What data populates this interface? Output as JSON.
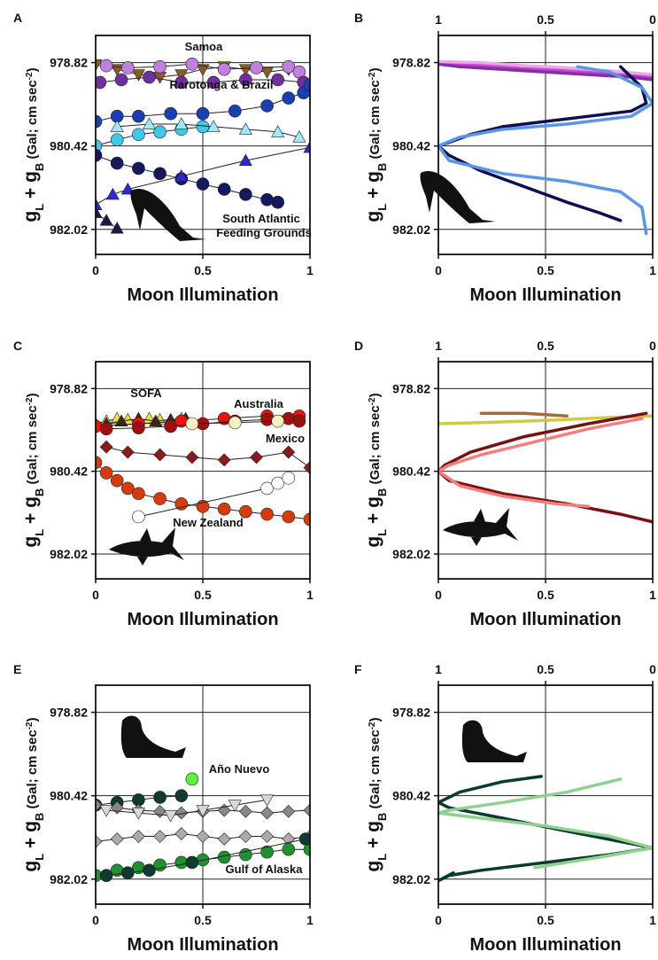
{
  "figure": {
    "xlabel": "Moon Illumination",
    "ylabel_main": "g",
    "ylabel_sub_L": "L",
    "ylabel_plus": " + g",
    "ylabel_sub_B": "B",
    "ylabel_units": " (Gal; cm sec",
    "ylabel_exp": "-2",
    "ylabel_close": ")",
    "y_ticks": [
      "978.82",
      "980.42",
      "982.02"
    ],
    "x_ticks_left": [
      "0",
      "0.5",
      "1"
    ],
    "x_ticks_right_top": [
      "1",
      "0.5",
      "0"
    ],
    "x_ticks_right_bottom": [
      "0",
      "0.5",
      "1"
    ]
  },
  "panels": [
    {
      "letter": "A",
      "silhouette": "whale",
      "labels": [
        "Samoa",
        "Rarotonga & Brazil",
        "South Atlantic",
        "Feeding Grounds"
      ]
    },
    {
      "letter": "B",
      "silhouette": "whale",
      "labels": []
    },
    {
      "letter": "C",
      "silhouette": "shark",
      "labels": [
        "SOFA",
        "Australia",
        "Mexico",
        "New Zealand"
      ]
    },
    {
      "letter": "D",
      "silhouette": "shark",
      "labels": []
    },
    {
      "letter": "E",
      "silhouette": "seal",
      "labels": [
        "Año Nuevo",
        "Gulf of Alaska"
      ]
    },
    {
      "letter": "F",
      "silhouette": "seal",
      "labels": []
    }
  ],
  "chart_data": [
    {
      "panel": "A",
      "type": "scatter",
      "xlabel": "Moon Illumination",
      "ylabel": "gL + gB (Gal; cm sec-2)",
      "xlim": [
        0,
        1
      ],
      "ylim": [
        978.3,
        982.5
      ],
      "series": [
        {
          "name": "Samoa",
          "color": "#8b5a2b",
          "marker": "triangle-down",
          "x": [
            0.0,
            0.1,
            0.2,
            0.3,
            0.4,
            0.5,
            0.6,
            0.7,
            0.8,
            0.9
          ],
          "y": [
            978.86,
            978.95,
            979.05,
            979.1,
            979.05,
            978.95,
            978.9,
            978.95,
            979.0,
            978.95
          ]
        },
        {
          "name": "Samoa (2)",
          "color": "#c080e0",
          "marker": "circle",
          "x": [
            0.05,
            0.15,
            0.3,
            0.45,
            0.6,
            0.75,
            0.9,
            0.95
          ],
          "y": [
            978.88,
            978.92,
            978.9,
            978.85,
            978.95,
            978.92,
            978.9,
            979.0
          ]
        },
        {
          "name": "Rarotonga & Brazil",
          "color": "#7030a0",
          "marker": "circle",
          "x": [
            0.02,
            0.12,
            0.25,
            0.4,
            0.55,
            0.7,
            0.85,
            0.97
          ],
          "y": [
            979.2,
            979.15,
            979.1,
            979.2,
            979.2,
            979.15,
            979.15,
            979.2
          ]
        },
        {
          "name": "Brazil (blue)",
          "color": "#1a3fb0",
          "marker": "circle",
          "x": [
            0.0,
            0.1,
            0.2,
            0.35,
            0.5,
            0.65,
            0.8,
            0.9,
            0.97,
            1.0
          ],
          "y": [
            979.95,
            979.85,
            979.85,
            979.8,
            979.8,
            979.75,
            979.65,
            979.5,
            979.4,
            979.25
          ]
        },
        {
          "name": "Brazil (cyan)",
          "color": "#40c8e8",
          "marker": "circle",
          "x": [
            0.0,
            0.1,
            0.2,
            0.3,
            0.4,
            0.5
          ],
          "y": [
            980.42,
            980.3,
            980.2,
            980.15,
            980.1,
            980.05
          ]
        },
        {
          "name": "Brazil (light-cyan)",
          "color": "#a0e8f8",
          "marker": "triangle-up",
          "x": [
            0.1,
            0.25,
            0.4,
            0.55,
            0.7,
            0.85,
            0.95
          ],
          "y": [
            980.05,
            980.0,
            980.0,
            980.05,
            980.1,
            980.15,
            980.25
          ]
        },
        {
          "name": "South Atlantic Feeding Grounds",
          "color": "#15195e",
          "marker": "circle",
          "x": [
            0.0,
            0.1,
            0.2,
            0.3,
            0.4,
            0.5,
            0.6,
            0.7,
            0.8,
            0.85
          ],
          "y": [
            980.6,
            980.75,
            980.85,
            980.95,
            981.05,
            981.15,
            981.25,
            981.35,
            981.45,
            981.5
          ]
        },
        {
          "name": "South Atlantic (blue)",
          "color": "#2a2ad0",
          "marker": "triangle-up",
          "x": [
            0.0,
            0.08,
            0.15,
            0.4,
            0.7,
            1.0
          ],
          "y": [
            981.55,
            981.35,
            981.25,
            981.0,
            980.7,
            980.45
          ]
        },
        {
          "name": "South Atlantic (dark)",
          "color": "#1a1a4a",
          "marker": "triangle-up",
          "x": [
            0.0,
            0.05,
            0.1
          ],
          "y": [
            981.7,
            981.85,
            982.0
          ]
        }
      ]
    },
    {
      "panel": "B",
      "type": "line",
      "xlabel": "Moon Illumination",
      "ylabel": "gL + gB (Gal; cm sec-2)",
      "xlim": [
        0,
        1
      ],
      "x_top_ticks": [
        "1",
        "0.5",
        "0"
      ],
      "ylim": [
        978.3,
        982.5
      ],
      "series": [
        {
          "name": "Samoa (magenta)",
          "color": "#cc44cc",
          "x": [
            0.0,
            0.1,
            0.3,
            0.5,
            0.7,
            0.9,
            1.0
          ],
          "y": [
            978.82,
            978.85,
            978.9,
            978.95,
            979.0,
            979.05,
            979.1
          ]
        },
        {
          "name": "Samoa (purple)",
          "color": "#8030a8",
          "x": [
            0.0,
            0.1,
            0.3,
            0.5,
            0.7,
            0.9,
            1.0
          ],
          "y": [
            978.85,
            978.9,
            978.95,
            979.0,
            979.05,
            979.1,
            979.15
          ]
        },
        {
          "name": "Samoa (pink)",
          "color": "#e9a8e9",
          "x": [
            0.0,
            0.2,
            0.4,
            0.6,
            0.8,
            1.0
          ],
          "y": [
            978.8,
            978.82,
            978.88,
            978.92,
            978.98,
            979.05
          ]
        },
        {
          "name": "Feeding (navy)",
          "color": "#0e0e52",
          "x": [
            0.85,
            0.9,
            0.95,
            0.97,
            0.9,
            0.7,
            0.5,
            0.3,
            0.15,
            0.05,
            0.0,
            0.05,
            0.2,
            0.4,
            0.6,
            0.75,
            0.85
          ],
          "y": [
            978.9,
            979.1,
            979.3,
            979.6,
            979.75,
            979.85,
            979.95,
            980.05,
            980.2,
            980.35,
            980.42,
            980.6,
            980.9,
            981.2,
            981.5,
            981.7,
            981.85
          ]
        },
        {
          "name": "Feeding (blue)",
          "color": "#5b95e8",
          "x": [
            0.65,
            0.8,
            0.95,
            1.0,
            0.9,
            0.6,
            0.3,
            0.1,
            0.0,
            0.05,
            0.3,
            0.6,
            0.85,
            0.95,
            0.97
          ],
          "y": [
            978.9,
            979.0,
            979.3,
            979.6,
            979.85,
            980.0,
            980.1,
            980.25,
            980.42,
            980.7,
            980.95,
            981.1,
            981.3,
            981.6,
            982.1
          ]
        }
      ]
    },
    {
      "panel": "C",
      "type": "scatter",
      "xlabel": "Moon Illumination",
      "ylabel": "gL + gB (Gal; cm sec-2)",
      "xlim": [
        0,
        1
      ],
      "ylim": [
        978.3,
        982.5
      ],
      "series": [
        {
          "name": "SOFA",
          "color": "#e8e050",
          "marker": "triangle-up",
          "x": [
            0.0,
            0.05,
            0.1,
            0.15,
            0.2,
            0.25,
            0.3,
            0.35,
            0.4
          ],
          "y": [
            979.5,
            979.45,
            979.4,
            979.42,
            979.45,
            979.4,
            979.42,
            979.45,
            979.4
          ]
        },
        {
          "name": "SOFA (dark)",
          "color": "#3a2a10",
          "marker": "triangle-up",
          "x": [
            0.05,
            0.12,
            0.2,
            0.28,
            0.35,
            0.42
          ],
          "y": [
            979.5,
            979.45,
            979.4,
            979.45,
            979.42,
            979.4
          ]
        },
        {
          "name": "Australia",
          "color": "#ee1111",
          "marker": "circle",
          "x": [
            0.0,
            0.2,
            0.4,
            0.6,
            0.8,
            0.95
          ],
          "y": [
            979.55,
            979.5,
            979.45,
            979.4,
            979.35,
            979.35
          ]
        },
        {
          "name": "Mexico",
          "color": "#a01010",
          "marker": "circle",
          "x": [
            0.05,
            0.2,
            0.35,
            0.5,
            0.65,
            0.8,
            0.9,
            0.95
          ],
          "y": [
            979.6,
            979.58,
            979.55,
            979.5,
            979.45,
            979.42,
            979.4,
            979.45
          ]
        },
        {
          "name": "Mexico (cream)",
          "color": "#f8f0c0",
          "marker": "circle",
          "x": [
            0.45,
            0.65,
            0.85
          ],
          "y": [
            979.5,
            979.48,
            979.45
          ]
        },
        {
          "name": "New Zealand",
          "color": "#d43c10",
          "marker": "circle",
          "x": [
            0.0,
            0.05,
            0.1,
            0.15,
            0.2,
            0.3,
            0.4,
            0.5,
            0.6,
            0.7,
            0.8,
            0.9,
            1.0
          ],
          "y": [
            980.25,
            980.45,
            980.6,
            980.75,
            980.85,
            980.95,
            981.05,
            981.1,
            981.15,
            981.2,
            981.25,
            981.3,
            981.35
          ]
        },
        {
          "name": "New Zealand (diamond)",
          "color": "#8b1a1a",
          "marker": "diamond",
          "x": [
            0.05,
            0.15,
            0.3,
            0.45,
            0.6,
            0.75,
            0.9,
            1.0
          ],
          "y": [
            979.95,
            980.05,
            980.1,
            980.15,
            980.2,
            980.15,
            980.05,
            980.35
          ]
        },
        {
          "name": "New Zealand (white)",
          "color": "#ffffff",
          "marker": "circle",
          "x": [
            0.2,
            0.8,
            0.85,
            0.9
          ],
          "y": [
            981.3,
            980.75,
            980.65,
            980.55
          ]
        }
      ]
    },
    {
      "panel": "D",
      "type": "line",
      "xlabel": "Moon Illumination",
      "ylabel": "gL + gB (Gal; cm sec-2)",
      "xlim": [
        0,
        1
      ],
      "x_top_ticks": [
        "1",
        "0.5",
        "0"
      ],
      "ylim": [
        978.3,
        982.5
      ],
      "series": [
        {
          "name": "SOFA (gold)",
          "color": "#cccc44",
          "x": [
            0.0,
            0.2,
            0.4,
            0.6,
            0.8,
            1.0
          ],
          "y": [
            979.5,
            979.48,
            979.45,
            979.42,
            979.38,
            979.35
          ]
        },
        {
          "name": "Australia (brown)",
          "color": "#a86a3a",
          "x": [
            0.2,
            0.4,
            0.6
          ],
          "y": [
            979.3,
            979.3,
            979.35
          ]
        },
        {
          "name": "Mexico (dark red)",
          "color": "#7a1010",
          "x": [
            0.97,
            0.7,
            0.4,
            0.15,
            0.03,
            0.0,
            0.05,
            0.3,
            0.6,
            0.85,
            1.0
          ],
          "y": [
            979.3,
            979.5,
            979.75,
            980.05,
            980.3,
            980.42,
            980.6,
            980.85,
            981.05,
            981.25,
            981.4
          ]
        },
        {
          "name": "New Zealand (salmon)",
          "color": "#f08080",
          "x": [
            0.95,
            0.7,
            0.45,
            0.2,
            0.05,
            0.0,
            0.1,
            0.3,
            0.55,
            0.7
          ],
          "y": [
            979.4,
            979.6,
            979.85,
            980.1,
            980.3,
            980.42,
            980.7,
            980.9,
            981.05,
            981.1
          ]
        }
      ]
    },
    {
      "panel": "E",
      "type": "scatter",
      "xlabel": "Moon Illumination",
      "ylabel": "gL + gB (Gal; cm sec-2)",
      "xlim": [
        0,
        1
      ],
      "ylim": [
        978.3,
        982.5
      ],
      "series": [
        {
          "name": "Año Nuevo (dark)",
          "color": "#103a30",
          "marker": "circle",
          "x": [
            0.0,
            0.1,
            0.2,
            0.3,
            0.4
          ],
          "y": [
            980.6,
            980.55,
            980.5,
            980.45,
            980.42
          ]
        },
        {
          "name": "Año Nuevo (bright green)",
          "color": "#60f040",
          "marker": "circle",
          "x": [
            0.45
          ],
          "y": [
            980.1
          ]
        },
        {
          "name": "Año Nuevo (grey)",
          "color": "#888888",
          "marker": "diamond",
          "x": [
            0.0,
            0.1,
            0.2,
            0.3,
            0.4,
            0.5,
            0.6,
            0.7,
            0.8,
            0.9,
            1.0
          ],
          "y": [
            980.6,
            980.65,
            980.7,
            980.72,
            980.75,
            980.72,
            980.7,
            980.72,
            980.75,
            980.72,
            980.7
          ]
        },
        {
          "name": "Año Nuevo (light)",
          "color": "#d8d8d8",
          "marker": "triangle-down",
          "x": [
            0.05,
            0.2,
            0.35,
            0.5,
            0.65,
            0.8
          ],
          "y": [
            980.7,
            980.75,
            980.8,
            980.7,
            980.6,
            980.5
          ]
        },
        {
          "name": "Gulf of Alaska (grey)",
          "color": "#aaaaaa",
          "marker": "diamond",
          "x": [
            0.0,
            0.1,
            0.2,
            0.3,
            0.4,
            0.5,
            0.6,
            0.7,
            0.8,
            0.9,
            1.0
          ],
          "y": [
            981.3,
            981.25,
            981.2,
            981.2,
            981.15,
            981.2,
            981.25,
            981.2,
            981.2,
            981.25,
            981.2
          ]
        },
        {
          "name": "Gulf of Alaska (green)",
          "color": "#209030",
          "marker": "circle",
          "x": [
            0.0,
            0.1,
            0.2,
            0.3,
            0.4,
            0.5,
            0.6,
            0.7,
            0.8,
            0.9,
            1.0
          ],
          "y": [
            981.95,
            981.85,
            981.8,
            981.75,
            981.7,
            981.65,
            981.6,
            981.55,
            981.5,
            981.45,
            981.45
          ]
        },
        {
          "name": "Gulf of Alaska (dark)",
          "color": "#103a30",
          "marker": "circle",
          "x": [
            0.05,
            0.15,
            0.25,
            0.45,
            0.98
          ],
          "y": [
            981.95,
            981.9,
            981.85,
            981.7,
            981.25
          ]
        }
      ]
    },
    {
      "panel": "F",
      "type": "line",
      "xlabel": "Moon Illumination",
      "ylabel": "gL + gB (Gal; cm sec-2)",
      "xlim": [
        0,
        1
      ],
      "x_top_ticks": [
        "1",
        "0.5",
        "0"
      ],
      "ylim": [
        978.3,
        982.5
      ],
      "series": [
        {
          "name": "Año Nuevo (dark)",
          "color": "#0a3a30",
          "x": [
            0.48,
            0.3,
            0.1,
            0.0,
            0.05,
            0.3,
            0.6,
            0.85,
            1.0,
            0.8,
            0.5,
            0.2,
            0.05,
            0.0,
            0.07
          ],
          "y": [
            980.05,
            980.15,
            980.35,
            980.55,
            980.65,
            980.85,
            981.1,
            981.3,
            981.42,
            981.55,
            981.7,
            981.85,
            981.95,
            982.05,
            981.9
          ]
        },
        {
          "name": "Gulf of Alaska (light green)",
          "color": "#90d090",
          "x": [
            0.85,
            0.6,
            0.3,
            0.05,
            0.0,
            0.2,
            0.5,
            0.8,
            1.0,
            0.75,
            0.45
          ],
          "y": [
            980.1,
            980.35,
            980.55,
            980.7,
            980.75,
            980.85,
            981.0,
            981.2,
            981.42,
            981.6,
            981.8
          ]
        }
      ]
    }
  ]
}
